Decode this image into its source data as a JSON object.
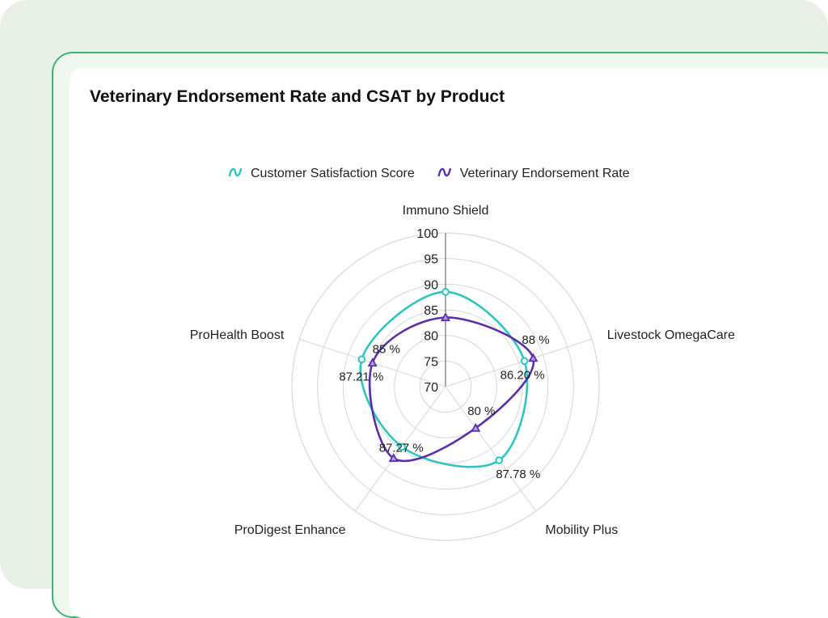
{
  "chart_data": {
    "type": "radar",
    "title": "Veterinary Endorsement Rate and CSAT by Product",
    "categories": [
      "Immuno Shield",
      "Livestock OmegaCare",
      "Mobility Plus",
      "ProDigest Enhance",
      "ProHealth Boost"
    ],
    "radial_range": [
      70,
      100
    ],
    "radial_ticks": [
      "70",
      "75",
      "80",
      "85",
      "90",
      "95",
      "100"
    ],
    "legend_position": "top",
    "series": [
      {
        "name": "Customer Satisfaction Score",
        "values": [
          88.5,
          86.2,
          87.78,
          84.5,
          87.21
        ],
        "labels": [
          "",
          "86.20 %",
          "87.78 %",
          "",
          "87.21 %"
        ],
        "color": "#2ec4c0",
        "marker": "circle"
      },
      {
        "name": "Veterinary Endorsement Rate",
        "values": [
          83.5,
          88,
          80,
          87.27,
          85
        ],
        "labels": [
          "",
          "88 %",
          "80 %",
          "87.27 %",
          "85 %"
        ],
        "color": "#5b2fa8",
        "marker": "triangle"
      }
    ]
  }
}
